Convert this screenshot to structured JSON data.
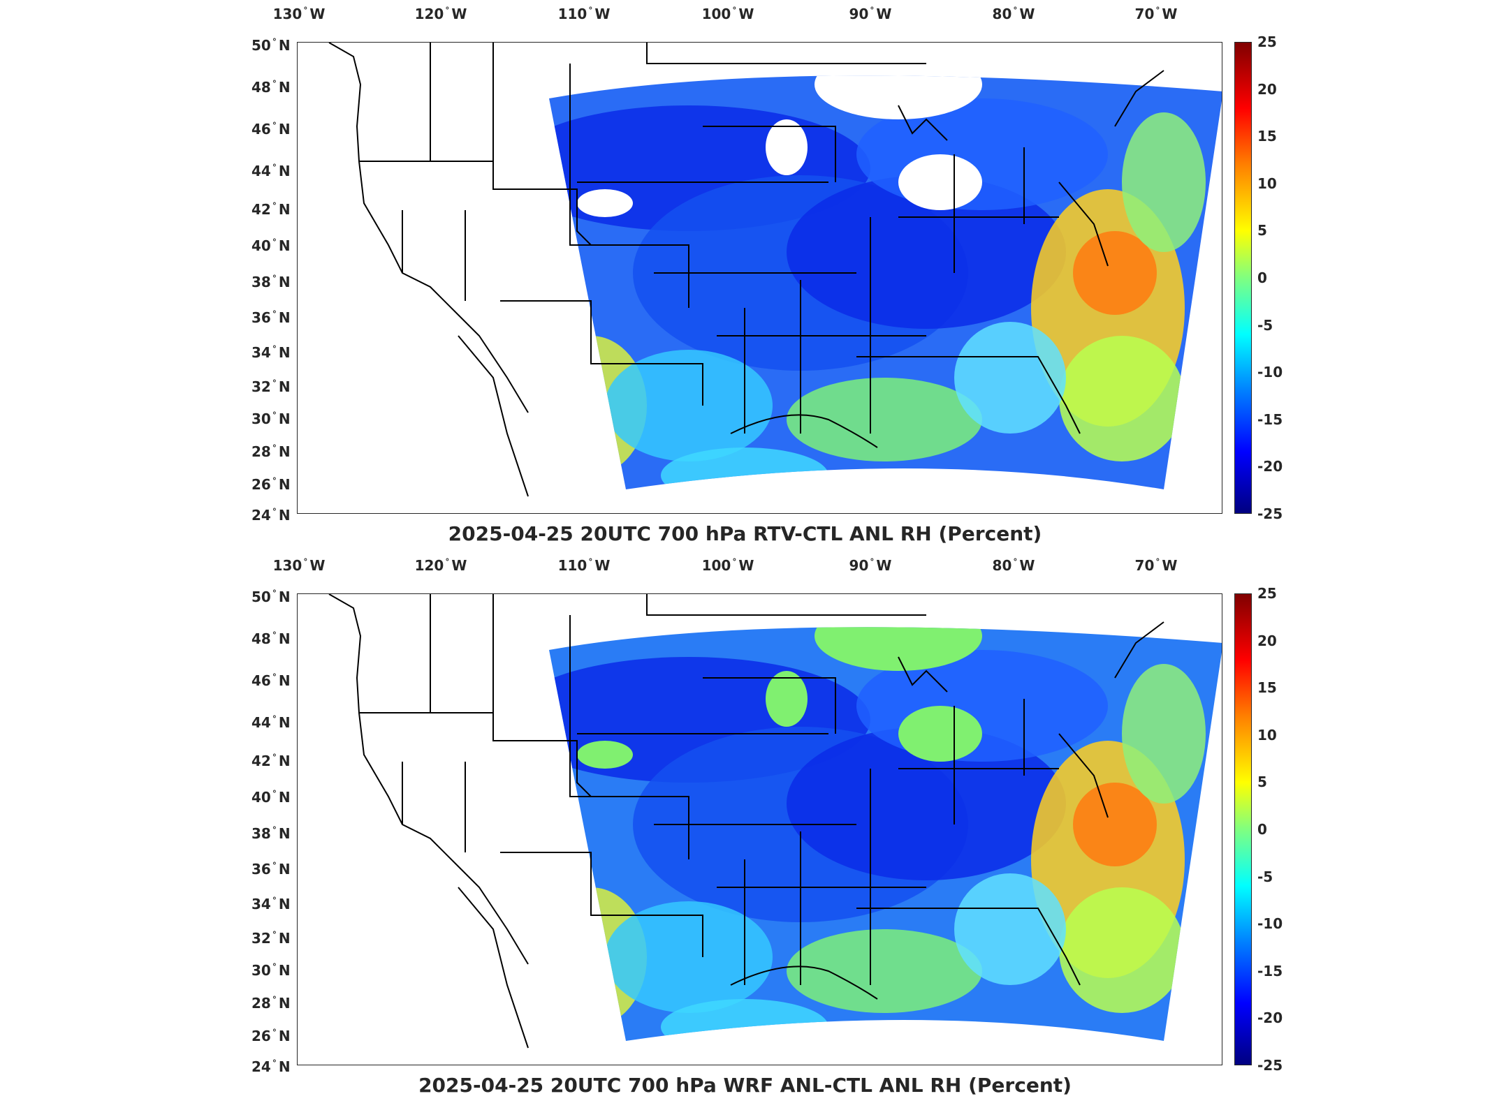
{
  "panels": [
    {
      "title": "2025-04-25 20UTC 700 hPa RTV-CTL ANL RH (Percent)",
      "lon_labels": [
        "130",
        "120",
        "110",
        "100",
        "90",
        "80",
        "70"
      ],
      "lon_suffix": "W",
      "lat_labels": [
        "50",
        "48",
        "46",
        "44",
        "42",
        "40",
        "38",
        "36",
        "34",
        "32",
        "30",
        "28",
        "26",
        "24"
      ],
      "lat_suffix": "N",
      "colorbar_ticks": [
        "25",
        "20",
        "15",
        "10",
        "5",
        "0",
        "-5",
        "-10",
        "-15",
        "-20",
        "-25"
      ],
      "missing_fill": "white"
    },
    {
      "title": "2025-04-25 20UTC 700 hPa WRF ANL-CTL ANL RH (Percent)",
      "lon_labels": [
        "130",
        "120",
        "110",
        "100",
        "90",
        "80",
        "70"
      ],
      "lon_suffix": "W",
      "lat_labels": [
        "50",
        "48",
        "46",
        "44",
        "42",
        "40",
        "38",
        "36",
        "34",
        "32",
        "30",
        "28",
        "26",
        "24"
      ],
      "lat_suffix": "N",
      "colorbar_ticks": [
        "25",
        "20",
        "15",
        "10",
        "5",
        "0",
        "-5",
        "-10",
        "-15",
        "-20",
        "-25"
      ],
      "missing_fill": "green (zero)"
    }
  ],
  "colormap": {
    "name": "jet",
    "range": [
      -25,
      25
    ],
    "colors": [
      "#000080",
      "#0000ff",
      "#0080ff",
      "#00ffff",
      "#80ff80",
      "#ffff00",
      "#ff8000",
      "#ff0000",
      "#800000"
    ]
  }
}
